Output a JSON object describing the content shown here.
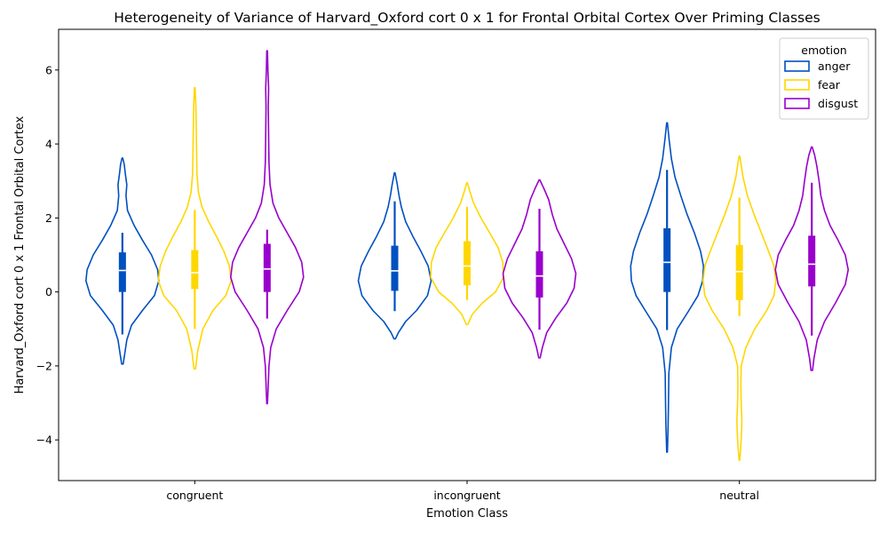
{
  "chart_data": {
    "type": "violin",
    "title": "Heterogeneity of Variance of Harvard_Oxford cort 0 x 1 for Frontal Orbital Cortex Over Priming Classes",
    "xlabel": "Emotion Class",
    "ylabel": "Harvard_Oxford cort 0 x 1 Frontal Orbital Cortex",
    "categories": [
      "congruent",
      "incongruent",
      "neutral"
    ],
    "ylim": [
      -5.1,
      7.1
    ],
    "yticks": [
      -4,
      -2,
      0,
      2,
      4,
      6
    ],
    "ytick_labels": [
      "−4",
      "−2",
      "0",
      "2",
      "4",
      "6"
    ],
    "legend": {
      "title": "emotion",
      "position": "top-right",
      "entries": [
        "anger",
        "fear",
        "disgust"
      ]
    },
    "series": [
      {
        "name": "anger",
        "color": "#0050C0",
        "violins": [
          {
            "min": -1.95,
            "max": 3.62,
            "q1": 0.0,
            "median": 0.58,
            "q3": 1.07,
            "whisker_low": -1.15,
            "whisker_high": 1.6,
            "profile": [
              [
                -1.95,
                0.02
              ],
              [
                -1.7,
                0.06
              ],
              [
                -1.3,
                0.12
              ],
              [
                -0.9,
                0.25
              ],
              [
                -0.5,
                0.55
              ],
              [
                -0.1,
                0.88
              ],
              [
                0.3,
                1.0
              ],
              [
                0.6,
                0.97
              ],
              [
                1.0,
                0.8
              ],
              [
                1.4,
                0.55
              ],
              [
                1.8,
                0.32
              ],
              [
                2.2,
                0.14
              ],
              [
                2.6,
                0.1
              ],
              [
                2.9,
                0.12
              ],
              [
                3.2,
                0.08
              ],
              [
                3.45,
                0.05
              ],
              [
                3.62,
                0.01
              ]
            ]
          },
          {
            "min": -1.27,
            "max": 3.22,
            "q1": 0.03,
            "median": 0.57,
            "q3": 1.25,
            "whisker_low": -0.52,
            "whisker_high": 2.45,
            "profile": [
              [
                -1.27,
                0.02
              ],
              [
                -1.1,
                0.1
              ],
              [
                -0.8,
                0.3
              ],
              [
                -0.5,
                0.6
              ],
              [
                -0.1,
                0.9
              ],
              [
                0.3,
                1.0
              ],
              [
                0.7,
                0.92
              ],
              [
                1.1,
                0.72
              ],
              [
                1.5,
                0.5
              ],
              [
                1.9,
                0.3
              ],
              [
                2.3,
                0.18
              ],
              [
                2.6,
                0.12
              ],
              [
                2.9,
                0.07
              ],
              [
                3.22,
                0.01
              ]
            ]
          },
          {
            "min": -4.33,
            "max": 4.57,
            "q1": 0.0,
            "median": 0.8,
            "q3": 1.72,
            "whisker_low": -1.03,
            "whisker_high": 3.3,
            "profile": [
              [
                -4.33,
                0.01
              ],
              [
                -3.6,
                0.03
              ],
              [
                -3.0,
                0.04
              ],
              [
                -2.2,
                0.05
              ],
              [
                -1.5,
                0.12
              ],
              [
                -1.0,
                0.28
              ],
              [
                -0.5,
                0.6
              ],
              [
                -0.1,
                0.85
              ],
              [
                0.3,
                0.98
              ],
              [
                0.7,
                1.0
              ],
              [
                1.1,
                0.92
              ],
              [
                1.6,
                0.75
              ],
              [
                2.1,
                0.55
              ],
              [
                2.6,
                0.38
              ],
              [
                3.1,
                0.22
              ],
              [
                3.6,
                0.12
              ],
              [
                4.1,
                0.06
              ],
              [
                4.57,
                0.01
              ]
            ]
          }
        ]
      },
      {
        "name": "fear",
        "color": "#FFD700",
        "violins": [
          {
            "min": -2.08,
            "max": 5.52,
            "q1": 0.08,
            "median": 0.52,
            "q3": 1.13,
            "whisker_low": -1.0,
            "whisker_high": 2.22,
            "profile": [
              [
                -2.08,
                0.02
              ],
              [
                -1.6,
                0.08
              ],
              [
                -1.0,
                0.22
              ],
              [
                -0.5,
                0.5
              ],
              [
                -0.1,
                0.85
              ],
              [
                0.3,
                1.0
              ],
              [
                0.7,
                0.95
              ],
              [
                1.1,
                0.8
              ],
              [
                1.5,
                0.6
              ],
              [
                1.9,
                0.38
              ],
              [
                2.3,
                0.2
              ],
              [
                2.7,
                0.1
              ],
              [
                3.2,
                0.06
              ],
              [
                3.8,
                0.05
              ],
              [
                4.4,
                0.04
              ],
              [
                5.0,
                0.03
              ],
              [
                5.52,
                0.01
              ]
            ]
          },
          {
            "min": -0.88,
            "max": 2.95,
            "q1": 0.18,
            "median": 0.7,
            "q3": 1.37,
            "whisker_low": -0.22,
            "whisker_high": 2.3,
            "profile": [
              [
                -0.88,
                0.02
              ],
              [
                -0.6,
                0.15
              ],
              [
                -0.3,
                0.42
              ],
              [
                0.0,
                0.78
              ],
              [
                0.4,
                1.0
              ],
              [
                0.8,
                0.98
              ],
              [
                1.2,
                0.85
              ],
              [
                1.6,
                0.62
              ],
              [
                2.0,
                0.38
              ],
              [
                2.4,
                0.18
              ],
              [
                2.7,
                0.08
              ],
              [
                2.95,
                0.01
              ]
            ]
          },
          {
            "min": -4.55,
            "max": 3.67,
            "q1": -0.22,
            "median": 0.55,
            "q3": 1.27,
            "whisker_low": -0.65,
            "whisker_high": 2.55,
            "profile": [
              [
                -4.55,
                0.01
              ],
              [
                -4.0,
                0.05
              ],
              [
                -3.5,
                0.07
              ],
              [
                -3.0,
                0.05
              ],
              [
                -2.5,
                0.04
              ],
              [
                -2.0,
                0.05
              ],
              [
                -1.5,
                0.18
              ],
              [
                -1.0,
                0.42
              ],
              [
                -0.5,
                0.75
              ],
              [
                -0.1,
                0.95
              ],
              [
                0.3,
                1.0
              ],
              [
                0.7,
                0.95
              ],
              [
                1.1,
                0.8
              ],
              [
                1.6,
                0.6
              ],
              [
                2.1,
                0.4
              ],
              [
                2.6,
                0.22
              ],
              [
                3.1,
                0.1
              ],
              [
                3.67,
                0.01
              ]
            ]
          }
        ]
      },
      {
        "name": "disgust",
        "color": "#9900CC",
        "violins": [
          {
            "min": -3.02,
            "max": 6.52,
            "q1": 0.0,
            "median": 0.62,
            "q3": 1.3,
            "whisker_low": -0.72,
            "whisker_high": 1.68,
            "profile": [
              [
                -3.02,
                0.01
              ],
              [
                -2.5,
                0.03
              ],
              [
                -2.0,
                0.05
              ],
              [
                -1.5,
                0.1
              ],
              [
                -1.0,
                0.25
              ],
              [
                -0.5,
                0.55
              ],
              [
                0.0,
                0.88
              ],
              [
                0.4,
                1.0
              ],
              [
                0.8,
                0.95
              ],
              [
                1.2,
                0.78
              ],
              [
                1.6,
                0.55
              ],
              [
                2.0,
                0.32
              ],
              [
                2.4,
                0.16
              ],
              [
                2.9,
                0.08
              ],
              [
                3.5,
                0.05
              ],
              [
                4.2,
                0.04
              ],
              [
                5.0,
                0.03
              ],
              [
                5.5,
                0.04
              ],
              [
                6.0,
                0.02
              ],
              [
                6.52,
                0.01
              ]
            ]
          },
          {
            "min": -1.78,
            "max": 3.03,
            "q1": -0.15,
            "median": 0.43,
            "q3": 1.1,
            "whisker_low": -1.02,
            "whisker_high": 2.25,
            "profile": [
              [
                -1.78,
                0.02
              ],
              [
                -1.5,
                0.08
              ],
              [
                -1.1,
                0.2
              ],
              [
                -0.7,
                0.45
              ],
              [
                -0.3,
                0.75
              ],
              [
                0.1,
                0.95
              ],
              [
                0.5,
                1.0
              ],
              [
                0.9,
                0.88
              ],
              [
                1.3,
                0.68
              ],
              [
                1.7,
                0.48
              ],
              [
                2.1,
                0.35
              ],
              [
                2.5,
                0.25
              ],
              [
                2.8,
                0.12
              ],
              [
                3.03,
                0.01
              ]
            ]
          },
          {
            "min": -2.12,
            "max": 3.92,
            "q1": 0.15,
            "median": 0.75,
            "q3": 1.52,
            "whisker_low": -1.18,
            "whisker_high": 2.95,
            "profile": [
              [
                -2.12,
                0.02
              ],
              [
                -1.8,
                0.06
              ],
              [
                -1.3,
                0.15
              ],
              [
                -0.8,
                0.35
              ],
              [
                -0.3,
                0.65
              ],
              [
                0.2,
                0.92
              ],
              [
                0.6,
                1.0
              ],
              [
                1.0,
                0.92
              ],
              [
                1.4,
                0.72
              ],
              [
                1.8,
                0.5
              ],
              [
                2.2,
                0.35
              ],
              [
                2.6,
                0.25
              ],
              [
                3.0,
                0.2
              ],
              [
                3.4,
                0.14
              ],
              [
                3.7,
                0.08
              ],
              [
                3.92,
                0.01
              ]
            ]
          }
        ]
      }
    ]
  }
}
